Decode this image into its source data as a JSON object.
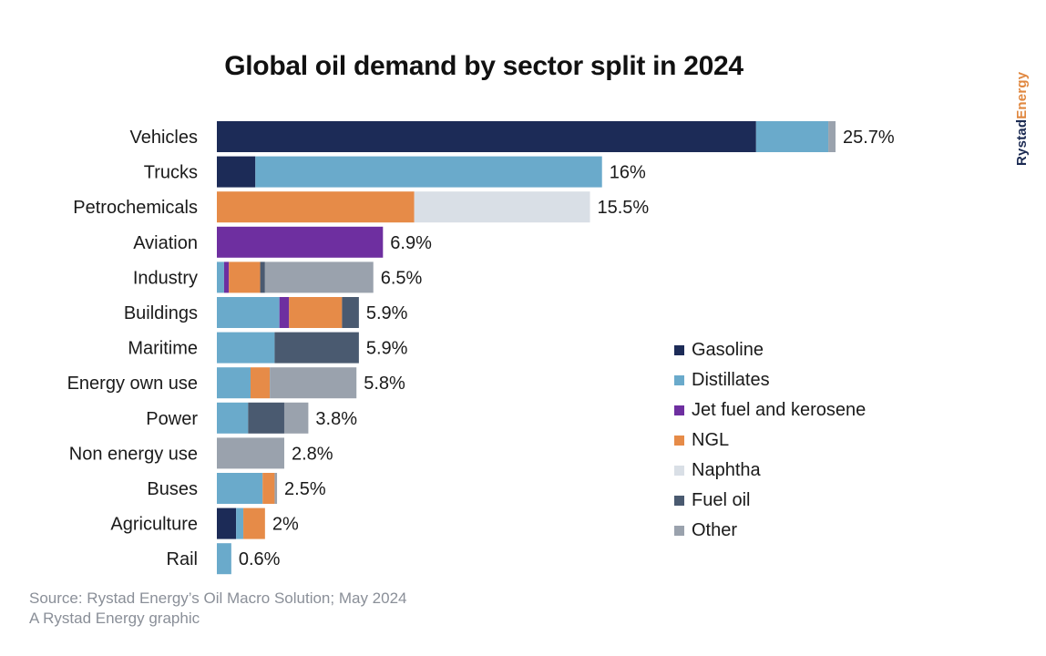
{
  "brand": {
    "part1": "Rystad",
    "part2": "Energy"
  },
  "footer": {
    "source": "Source: Rystad Energy’s Oil Macro Solution; May 2024",
    "credit": "A Rystad Energy graphic"
  },
  "chart_data": {
    "type": "bar",
    "orientation": "horizontal",
    "stacked": true,
    "title": "Global oil demand by sector split in 2024",
    "xlim": [
      0,
      25.7
    ],
    "grid": false,
    "legend_position": "right",
    "colors": {
      "Gasoline": "#1c2b57",
      "Distillates": "#6aaacb",
      "Jet fuel and kerosene": "#6e2fa0",
      "NGL": "#e68b48",
      "Naphtha": "#d9dfe6",
      "Fuel oil": "#4a5a70",
      "Other": "#9aa2ad"
    },
    "legend": [
      "Gasoline",
      "Distillates",
      "Jet fuel and kerosene",
      "NGL",
      "Naphtha",
      "Fuel oil",
      "Other"
    ],
    "categories": [
      {
        "name": "Vehicles",
        "total_label": "25.7%",
        "segments": [
          [
            "Gasoline",
            22.4
          ],
          [
            "Distillates",
            3.0
          ],
          [
            "Other",
            0.3
          ]
        ]
      },
      {
        "name": "Trucks",
        "total_label": "16%",
        "segments": [
          [
            "Gasoline",
            1.6
          ],
          [
            "Distillates",
            14.4
          ]
        ]
      },
      {
        "name": "Petrochemicals",
        "total_label": "15.5%",
        "segments": [
          [
            "NGL",
            8.2
          ],
          [
            "Naphtha",
            7.3
          ]
        ]
      },
      {
        "name": "Aviation",
        "total_label": "6.9%",
        "segments": [
          [
            "Jet fuel and kerosene",
            6.9
          ]
        ]
      },
      {
        "name": "Industry",
        "total_label": "6.5%",
        "segments": [
          [
            "Distillates",
            0.3
          ],
          [
            "Jet fuel and kerosene",
            0.2
          ],
          [
            "NGL",
            1.3
          ],
          [
            "Fuel oil",
            0.2
          ],
          [
            "Other",
            4.5
          ]
        ]
      },
      {
        "name": "Buildings",
        "total_label": "5.9%",
        "segments": [
          [
            "Distillates",
            2.6
          ],
          [
            "Jet fuel and kerosene",
            0.4
          ],
          [
            "NGL",
            2.2
          ],
          [
            "Fuel oil",
            0.7
          ]
        ]
      },
      {
        "name": "Maritime",
        "total_label": "5.9%",
        "segments": [
          [
            "Distillates",
            2.4
          ],
          [
            "Fuel oil",
            3.5
          ]
        ]
      },
      {
        "name": "Energy own use",
        "total_label": "5.8%",
        "segments": [
          [
            "Distillates",
            1.4
          ],
          [
            "NGL",
            0.8
          ],
          [
            "Other",
            3.6
          ]
        ]
      },
      {
        "name": "Power",
        "total_label": "3.8%",
        "segments": [
          [
            "Distillates",
            1.3
          ],
          [
            "Fuel oil",
            1.5
          ],
          [
            "Other",
            1.0
          ]
        ]
      },
      {
        "name": "Non energy use",
        "total_label": "2.8%",
        "segments": [
          [
            "Other",
            2.8
          ]
        ]
      },
      {
        "name": "Buses",
        "total_label": "2.5%",
        "segments": [
          [
            "Distillates",
            1.9
          ],
          [
            "NGL",
            0.5
          ],
          [
            "Other",
            0.1
          ]
        ]
      },
      {
        "name": "Agriculture",
        "total_label": "2%",
        "segments": [
          [
            "Gasoline",
            0.8
          ],
          [
            "Distillates",
            0.3
          ],
          [
            "NGL",
            0.9
          ]
        ]
      },
      {
        "name": "Rail",
        "total_label": "0.6%",
        "segments": [
          [
            "Distillates",
            0.6
          ]
        ]
      }
    ]
  }
}
